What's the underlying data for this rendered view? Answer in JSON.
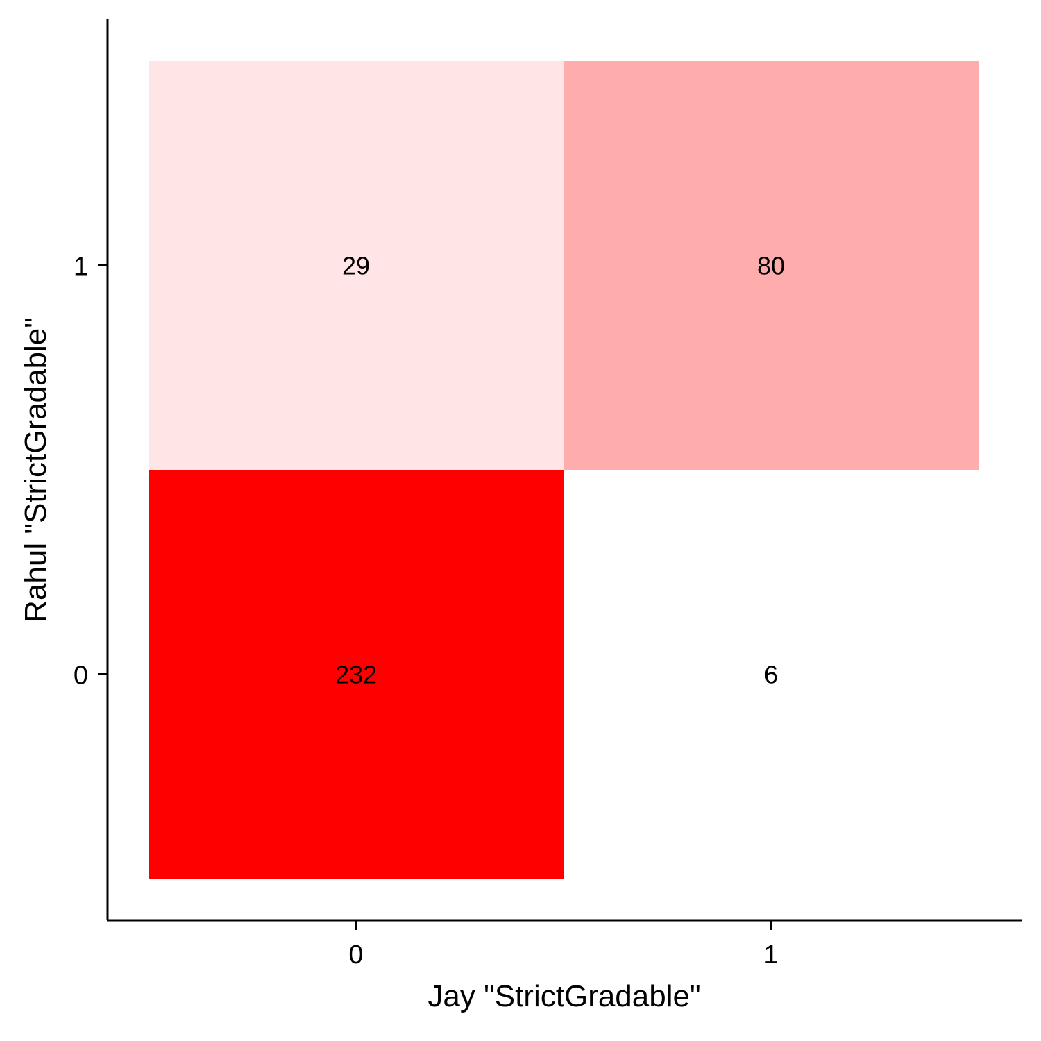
{
  "chart_data": {
    "type": "heatmap",
    "xlabel": "Jay \"StrictGradable\"",
    "ylabel": "Rahul \"StrictGradable\"",
    "x_categories": [
      "0",
      "1"
    ],
    "y_categories": [
      "0",
      "1"
    ],
    "cells": [
      {
        "x": "0",
        "y": "1",
        "value": 29,
        "label": "29"
      },
      {
        "x": "1",
        "y": "1",
        "value": 80,
        "label": "80"
      },
      {
        "x": "0",
        "y": "0",
        "value": 232,
        "label": "232"
      },
      {
        "x": "1",
        "y": "0",
        "value": 6,
        "label": "6"
      }
    ],
    "color_low": "#ffffff",
    "color_high": "#ff0000",
    "grid": false,
    "legend": "none"
  }
}
